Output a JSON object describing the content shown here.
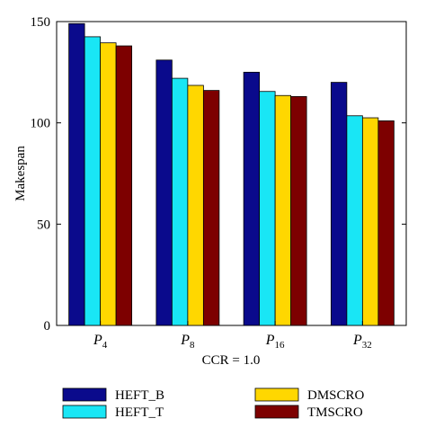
{
  "chart_data": {
    "type": "bar",
    "title": "",
    "xlabel": "CCR = 1.0",
    "ylabel": "Makespan",
    "ylim": [
      0,
      150
    ],
    "yticks": [
      0,
      50,
      100,
      150
    ],
    "grid": false,
    "legend_placement": "bottom",
    "categories": [
      "P4",
      "P8",
      "P16",
      "P32"
    ],
    "category_labels": [
      {
        "base": "P",
        "sub": "4"
      },
      {
        "base": "P",
        "sub": "8"
      },
      {
        "base": "P",
        "sub": "16"
      },
      {
        "base": "P",
        "sub": "32"
      }
    ],
    "series": [
      {
        "name": "HEFT_B",
        "color": "#0a0a8c",
        "values": [
          149,
          131,
          125,
          120
        ]
      },
      {
        "name": "HEFT_T",
        "color": "#19e6f5",
        "values": [
          142.5,
          122,
          115.5,
          103.5
        ]
      },
      {
        "name": "DMSCRO",
        "color": "#ffd700",
        "values": [
          139.5,
          118.5,
          113.5,
          102.5
        ]
      },
      {
        "name": "TMSCRO",
        "color": "#7d0000",
        "values": [
          138,
          116,
          113,
          101
        ]
      }
    ]
  }
}
